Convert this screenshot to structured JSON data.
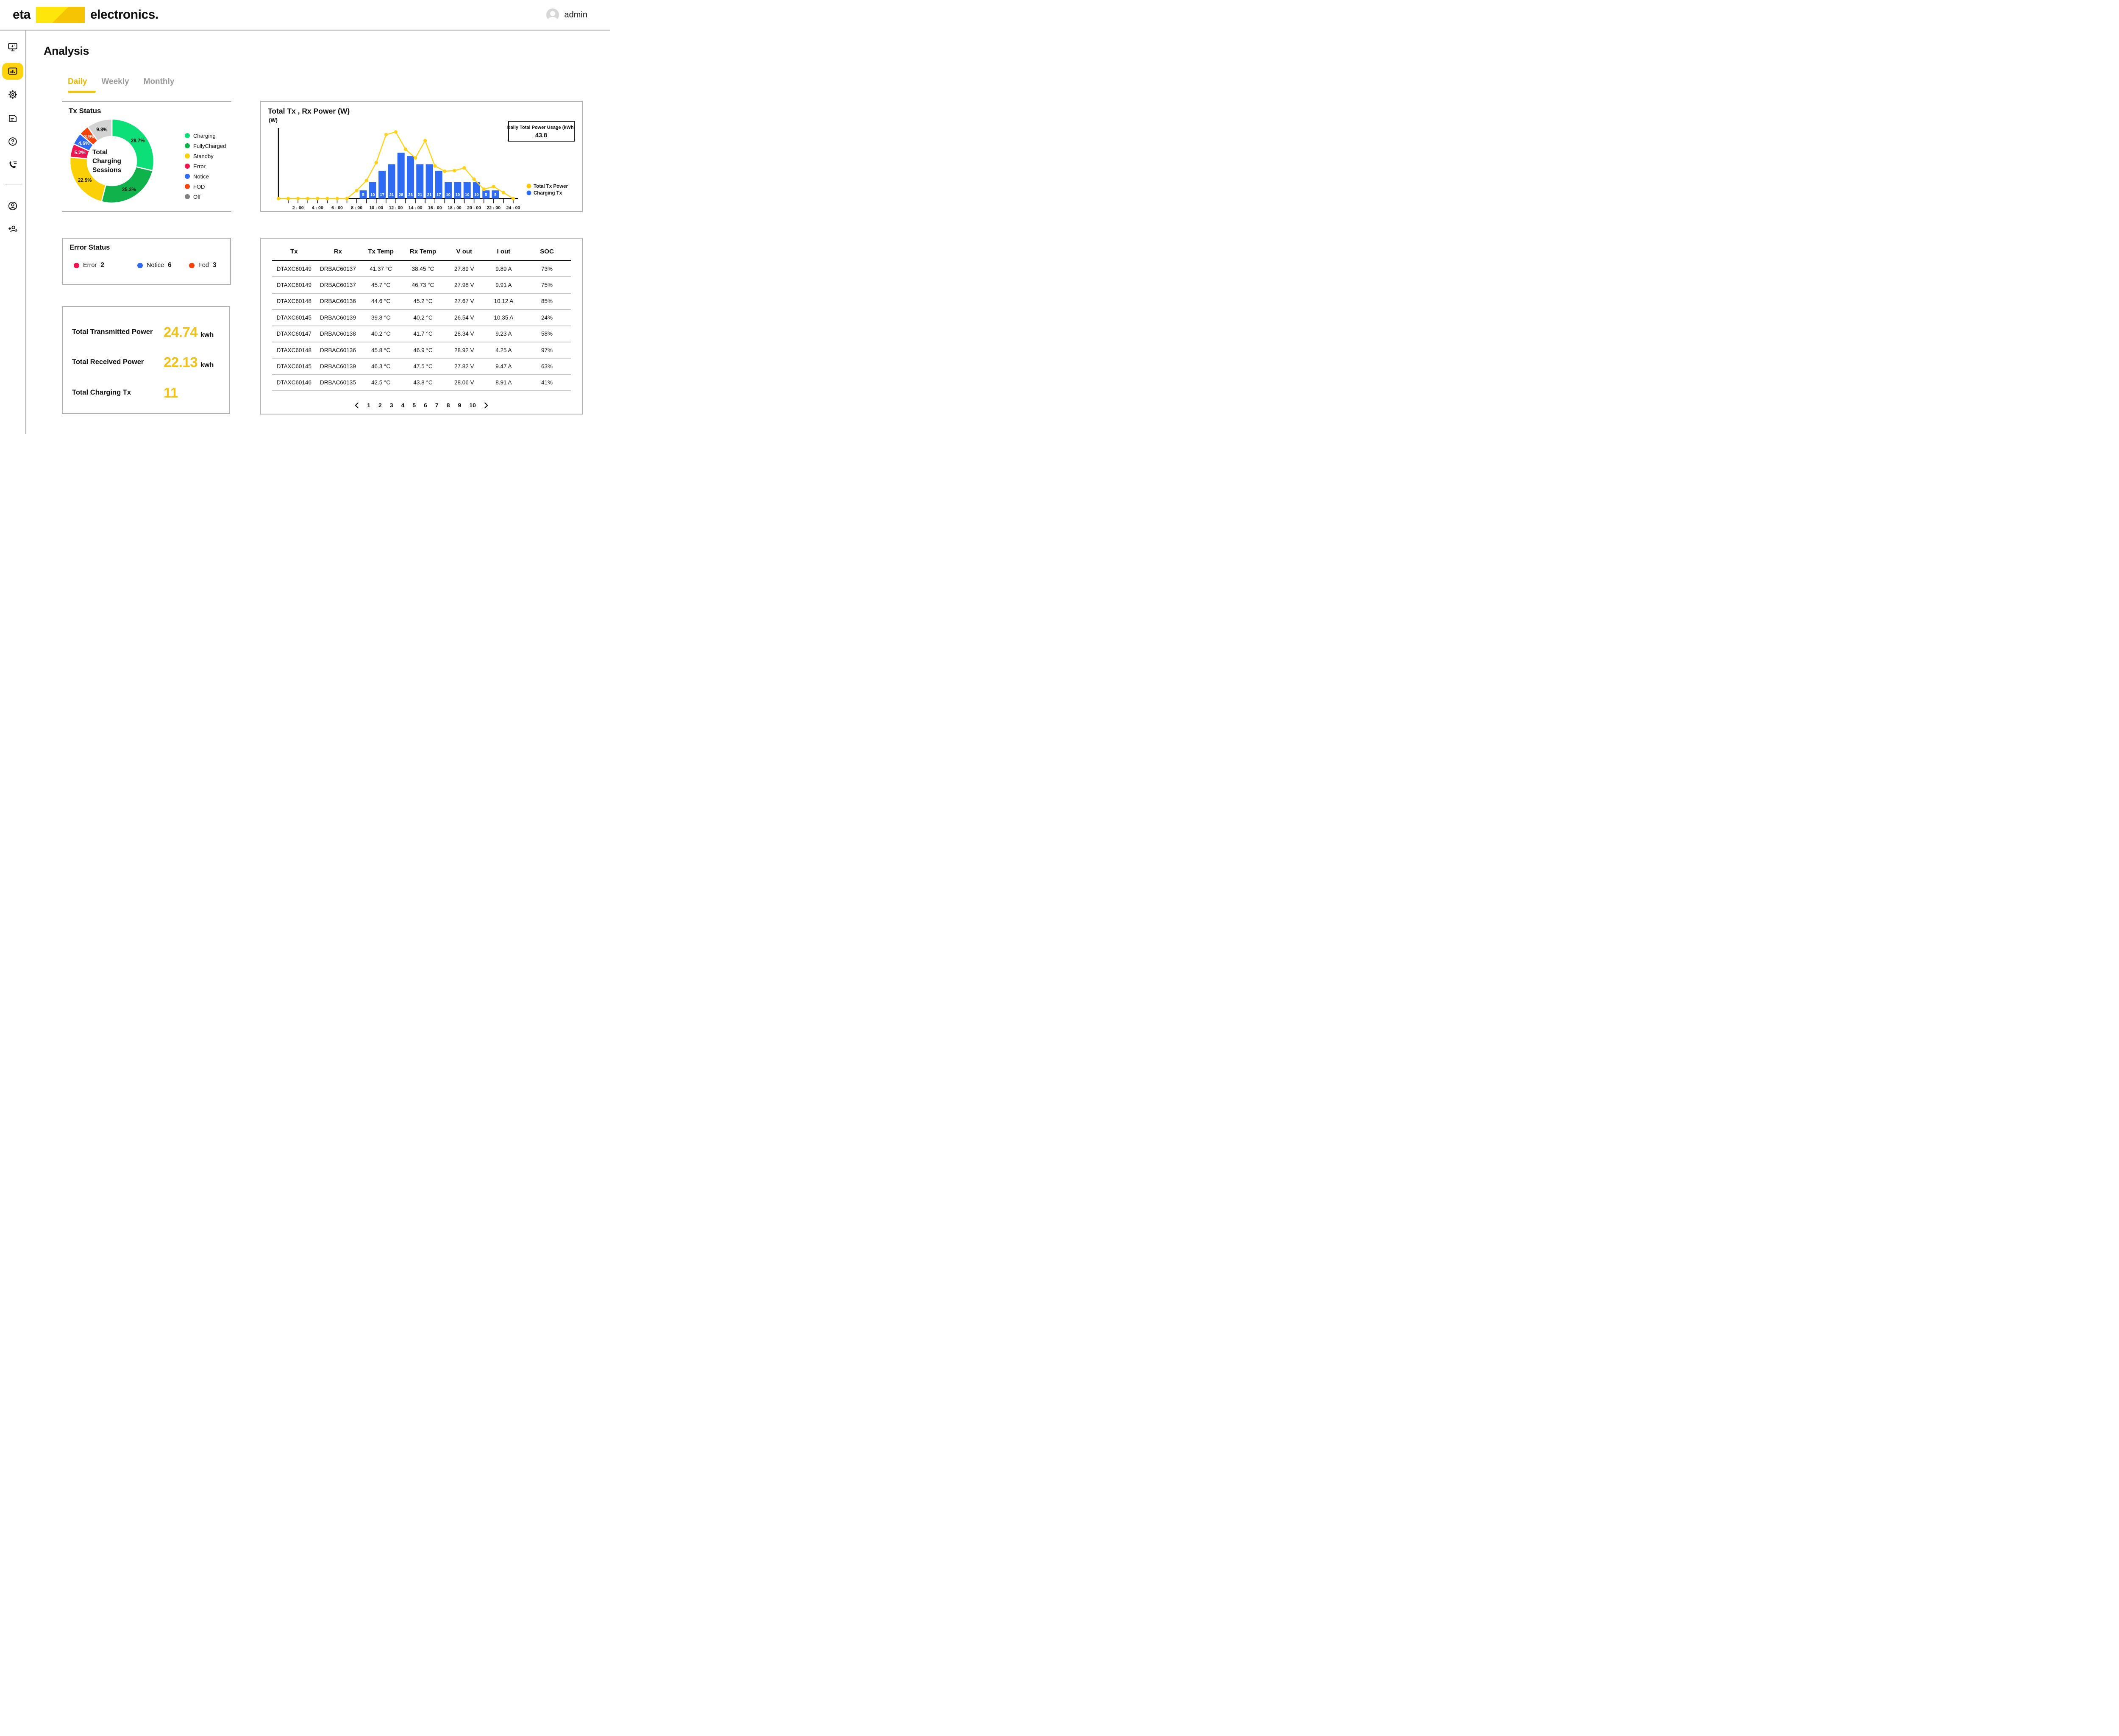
{
  "header": {
    "logo_text_1": "eta",
    "logo_text_2": "electronics.",
    "username": "admin"
  },
  "sidebar": {
    "active_item": "analysis",
    "items": [
      "monitor-icon",
      "bar-chart-icon",
      "gear-icon",
      "report-icon",
      "help-icon",
      "contact-phone-icon",
      "profile-icon",
      "add-user-icon"
    ]
  },
  "page": {
    "title": "Analysis"
  },
  "tabs": [
    {
      "label": "Daily",
      "active": true
    },
    {
      "label": "Weekly",
      "active": false
    },
    {
      "label": "Monthly",
      "active": false
    }
  ],
  "tx_status": {
    "title": "Tx Status",
    "center_lines": [
      "Total",
      "Charging",
      "Sessions"
    ]
  },
  "power_panel": {
    "title": "Total Tx , Rx Power (W)",
    "y_label": "(W)",
    "usage_label": "Daily Total Power Usage (kWh)",
    "usage_value": "43.8",
    "legend": [
      {
        "label": "Total Tx Power",
        "color": "#FFC90A"
      },
      {
        "label": "Charging Tx",
        "color": "#2E6BF2"
      }
    ]
  },
  "chart_data": [
    {
      "type": "pie",
      "variant": "donut",
      "title": "Tx Status",
      "center_label": "Total Charging Sessions",
      "legend_position": "right",
      "segments": [
        {
          "label": "Charging",
          "pct": 28.7,
          "color": "#0CDF78",
          "pct_label_color": "#111111"
        },
        {
          "label": "FullyCharged",
          "pct": 25.3,
          "color": "#10B24C",
          "pct_label_color": "#111111"
        },
        {
          "label": "Standby",
          "pct": 22.5,
          "color": "#FBD105",
          "pct_label_color": "#111111"
        },
        {
          "label": "Error",
          "pct": 5.2,
          "color": "#F01450",
          "pct_label_color": "#FFFFFF"
        },
        {
          "label": "Notice",
          "pct": 4.6,
          "color": "#2E6BF0",
          "pct_label_color": "#FFFFFF"
        },
        {
          "label": "FOD",
          "pct": 3.9,
          "color": "#F5420A",
          "pct_label_color": "#FFFFFF"
        },
        {
          "label": "Off",
          "pct": 9.8,
          "color": "#D3D3D3",
          "pct_label_color": "#111111",
          "legend_color": "#7E7E7E"
        }
      ]
    },
    {
      "type": "line",
      "title": "Total Tx , Rx Power (W)",
      "ylabel": "(W)",
      "y_axis": "unlabeled (no ticks shown)",
      "x_range_hours": [
        0,
        24
      ],
      "x_tick_labels": [
        "2 : 00",
        "4 : 00",
        "6 : 00",
        "8 : 00",
        "10 : 00",
        "12 : 00",
        "14 : 00",
        "16 : 00",
        "18 : 00",
        "20 : 00",
        "22 : 00",
        "24 : 00"
      ],
      "series": [
        {
          "name": "Total Tx Power",
          "kind": "line",
          "color": "#FFD21E",
          "unit": "percent_of_peak_estimated",
          "hours": [
            0,
            1,
            2,
            3,
            4,
            5,
            6,
            7,
            8,
            9,
            10,
            11,
            12,
            13,
            14,
            15,
            16,
            17,
            18,
            19,
            20,
            21,
            22,
            23,
            24
          ],
          "values": [
            0,
            0,
            0,
            0,
            0,
            0,
            0,
            0,
            12,
            27,
            54,
            96,
            100,
            74,
            61,
            87,
            49,
            41,
            42,
            46,
            29,
            14,
            18,
            9,
            0
          ]
        },
        {
          "name": "Charging Tx",
          "kind": "bar",
          "color": "#2E6BF2",
          "centers_hour": [
            8.67,
            9.63,
            10.6,
            11.57,
            12.53,
            13.5,
            14.46,
            15.43,
            16.39,
            17.36,
            18.32,
            19.29,
            20.25,
            21.22,
            22.18
          ],
          "values": [
            5,
            10,
            17,
            21,
            28,
            26,
            21,
            21,
            17,
            10,
            10,
            10,
            10,
            5,
            5
          ]
        }
      ],
      "annotation": {
        "label": "Daily Total Power Usage (kWh)",
        "value": "43.8"
      },
      "legend_position": "right-bottom"
    }
  ],
  "error_status": {
    "title": "Error Status",
    "items": [
      {
        "label": "Error",
        "count": "2",
        "color": "#F01450"
      },
      {
        "label": "Notice",
        "count": "6",
        "color": "#2E6BF0"
      },
      {
        "label": "Fod",
        "count": "3",
        "color": "#F5420A"
      }
    ]
  },
  "totals": {
    "rows": [
      {
        "label": "Total Transmitted Power",
        "value": "24.74",
        "unit": "kwh"
      },
      {
        "label": "Total Received Power",
        "value": "22.13",
        "unit": "kwh"
      },
      {
        "label": "Total Charging Tx",
        "value": "11",
        "unit": ""
      }
    ]
  },
  "table": {
    "columns": [
      "Tx",
      "Rx",
      "Tx Temp",
      "Rx Temp",
      "V out",
      "I out",
      "SOC"
    ],
    "rows": [
      [
        "DTAXC60149",
        "DRBAC60137",
        "41.37 °C",
        "38.45 °C",
        "27.89 V",
        "9.89 A",
        "73%"
      ],
      [
        "DTAXC60149",
        "DRBAC60137",
        "45.7 °C",
        "46.73 °C",
        "27.98 V",
        "9.91 A",
        "75%"
      ],
      [
        "DTAXC60148",
        "DRBAC60136",
        "44.6 °C",
        "45.2 °C",
        "27.67 V",
        "10.12 A",
        "85%"
      ],
      [
        "DTAXC60145",
        "DRBAC60139",
        "39.8 °C",
        "40.2 °C",
        "26.54 V",
        "10.35 A",
        "24%"
      ],
      [
        "DTAXC60147",
        "DRBAC60138",
        "40.2 °C",
        "41.7 °C",
        "28.34 V",
        "9.23 A",
        "58%"
      ],
      [
        "DTAXC60148",
        "DRBAC60136",
        "45.8 °C",
        "46.9 °C",
        "28.92 V",
        "4.25 A",
        "97%"
      ],
      [
        "DTAXC60145",
        "DRBAC60139",
        "46.3 °C",
        "47.5 °C",
        "27.82 V",
        "9.47 A",
        "63%"
      ],
      [
        "DTAXC60146",
        "DRBAC60135",
        "42.5 °C",
        "43.8 °C",
        "28.06 V",
        "8.91 A",
        "41%"
      ]
    ]
  },
  "pagination": {
    "pages": [
      "1",
      "2",
      "3",
      "4",
      "5",
      "6",
      "7",
      "8",
      "9",
      "10"
    ]
  }
}
